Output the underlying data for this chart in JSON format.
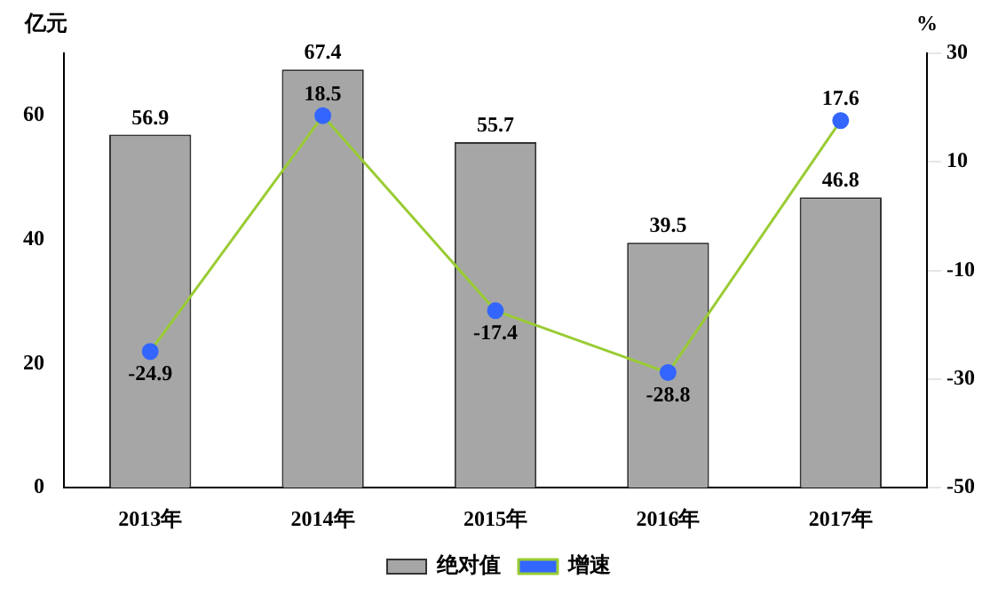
{
  "chart_data": {
    "type": "bar",
    "ylabel": "亿元",
    "y2label": "%",
    "categories": [
      "2013年",
      "2014年",
      "2015年",
      "2016年",
      "2017年"
    ],
    "series": [
      {
        "name": "绝对值",
        "color": "#a6a6a6",
        "values": [
          56.9,
          67.4,
          55.7,
          39.5,
          46.8
        ]
      },
      {
        "name": "增速",
        "type": "line",
        "axis": "y2",
        "color": "#99cc33",
        "marker": "circle",
        "values": [
          -24.9,
          18.5,
          -17.4,
          -28.8,
          17.6
        ]
      }
    ],
    "ylim": [
      0,
      70
    ],
    "yticks": [
      0,
      20,
      40,
      60
    ],
    "y2lim": [
      -50,
      30
    ],
    "y2ticks": [
      -50,
      -30,
      -10,
      10,
      30
    ],
    "data_labels": true,
    "grid": false,
    "legend": "bottom"
  }
}
